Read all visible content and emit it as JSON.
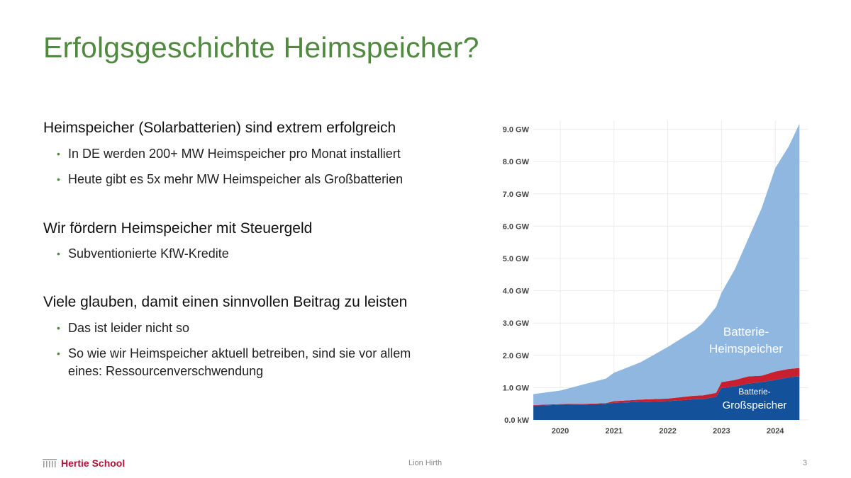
{
  "slide": {
    "title": "Erfolgsgeschichte Heimspeicher?",
    "sections": [
      {
        "heading": "Heimspeicher (Solarbatterien) sind extrem erfolgreich",
        "bullets": [
          "In DE werden 200+ MW Heimspeicher pro Monat installiert",
          "Heute gibt es 5x mehr MW Heimspeicher als Großbatterien"
        ]
      },
      {
        "heading": "Wir fördern Heimspeicher mit Steuergeld",
        "bullets": [
          "Subventionierte KfW-Kredite"
        ]
      },
      {
        "heading": "Viele glauben, damit einen sinnvollen Beitrag zu leisten",
        "bullets": [
          "Das ist leider nicht so",
          "So wie wir Heimspeicher aktuell betreiben, sind sie vor allem eines: Ressourcenverschwendung"
        ]
      }
    ],
    "bullet_color": "#4f8a3f",
    "title_color": "#4f8a3f"
  },
  "footer": {
    "logo": "Hertie School",
    "author": "Lion Hirth",
    "page": "3"
  },
  "chart_data": {
    "type": "area",
    "stacked": true,
    "x": [
      2019.5,
      2020,
      2020.5,
      2020.85,
      2021,
      2021.5,
      2022,
      2022.5,
      2022.65,
      2022.9,
      2023,
      2023.25,
      2023.5,
      2023.75,
      2024,
      2024.25,
      2024.45
    ],
    "series": [
      {
        "name": "Batterie-Großspeicher",
        "color": "#13519a",
        "values": [
          0.44,
          0.47,
          0.48,
          0.5,
          0.53,
          0.56,
          0.58,
          0.64,
          0.64,
          0.72,
          0.99,
          1.04,
          1.13,
          1.17,
          1.24,
          1.32,
          1.35
        ]
      },
      {
        "color": "#c8202f",
        "values": [
          0.02,
          0.02,
          0.02,
          0.02,
          0.05,
          0.07,
          0.08,
          0.11,
          0.12,
          0.12,
          0.18,
          0.2,
          0.22,
          0.2,
          0.26,
          0.26,
          0.26
        ]
      },
      {
        "name": "Batterie-Heimspeicher",
        "color": "#8fb7e0",
        "values": [
          0.34,
          0.42,
          0.63,
          0.76,
          0.88,
          1.16,
          1.6,
          2.03,
          2.23,
          2.66,
          2.77,
          3.43,
          4.27,
          5.2,
          6.3,
          6.89,
          7.56
        ]
      }
    ],
    "x_ticks": [
      "2020",
      "2021",
      "2022",
      "2023",
      "2024"
    ],
    "y_ticks": [
      "0.0 kW",
      "1.0 GW",
      "2.0 GW",
      "3.0 GW",
      "4.0 GW",
      "5.0 GW",
      "6.0 GW",
      "7.0 GW",
      "8.0 GW",
      "9.0 GW"
    ],
    "annotations": {
      "heim": [
        "Batterie-",
        "Heimspeicher"
      ],
      "gross": [
        "Batterie-",
        "Großspeicher"
      ]
    },
    "ylim": [
      0,
      9.2
    ],
    "grid": true,
    "xlabel": "",
    "ylabel": "",
    "title": ""
  }
}
